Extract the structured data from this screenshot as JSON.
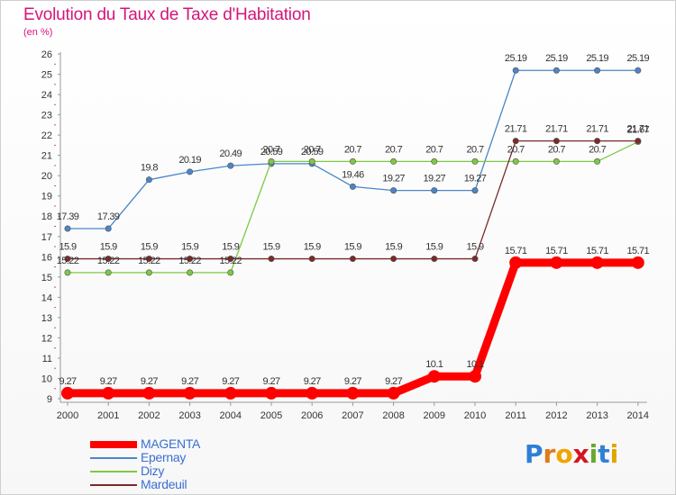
{
  "chart_data": {
    "type": "line",
    "title": "Evolution du Taux de Taxe d'Habitation",
    "unit_label": "(en %)",
    "categories": [
      "2000",
      "2001",
      "2002",
      "2003",
      "2004",
      "2005",
      "2006",
      "2007",
      "2008",
      "2009",
      "2010",
      "2011",
      "2012",
      "2013",
      "2014"
    ],
    "y_ticks": [
      "9",
      "10",
      "11",
      "12",
      "13",
      "14",
      "15",
      "16",
      "17",
      "18",
      "19",
      "20",
      "21",
      "22",
      "23",
      "24",
      "25",
      "26"
    ],
    "ylim": [
      9,
      26
    ],
    "grid": false,
    "legend_position": "bottom-left",
    "series": [
      {
        "name": "Epernay",
        "color": "#4a86c8",
        "values": [
          17.39,
          17.39,
          19.8,
          20.19,
          20.49,
          20.59,
          20.59,
          19.46,
          19.27,
          19.27,
          19.27,
          25.19,
          25.19,
          25.19,
          25.19
        ],
        "labels": [
          "17.39",
          "17.39",
          "19.8",
          "20.19",
          "20.49",
          "20.59",
          "20.59",
          "19.46",
          "19.27",
          "19.27",
          "19.27",
          "25.19",
          "25.19",
          "25.19",
          "25.19"
        ]
      },
      {
        "name": "Dizy",
        "color": "#7cc943",
        "values": [
          15.22,
          15.22,
          15.22,
          15.22,
          15.22,
          20.7,
          20.7,
          20.7,
          20.7,
          20.7,
          20.7,
          20.7,
          20.7,
          20.7,
          21.67
        ],
        "labels": [
          "15.22",
          "15.22",
          "15.22",
          "15.22",
          "15.22",
          "20.7",
          "20.7",
          "20.7",
          "20.7",
          "20.7",
          "20.7",
          "20.7",
          "20.7",
          "20.7",
          "21.67"
        ]
      },
      {
        "name": "Mardeuil",
        "color": "#7a2a2a",
        "values": [
          15.9,
          15.9,
          15.9,
          15.9,
          15.9,
          15.9,
          15.9,
          15.9,
          15.9,
          15.9,
          15.9,
          21.71,
          21.71,
          21.71,
          21.71
        ],
        "labels": [
          "15.9",
          "15.9",
          "15.9",
          "15.9",
          "15.9",
          "15.9",
          "15.9",
          "15.9",
          "15.9",
          "15.9",
          "15.9",
          "21.71",
          "21.71",
          "21.71",
          "21.71"
        ]
      },
      {
        "name": "MAGENTA",
        "color": "#ff0000",
        "values": [
          9.27,
          9.27,
          9.27,
          9.27,
          9.27,
          9.27,
          9.27,
          9.27,
          9.27,
          10.1,
          10.1,
          15.71,
          15.71,
          15.71,
          15.71
        ],
        "labels": [
          "9.27",
          "9.27",
          "9.27",
          "9.27",
          "9.27",
          "9.27",
          "9.27",
          "9.27",
          "9.27",
          "10.1",
          "10.1",
          "15.71",
          "15.71",
          "15.71",
          "15.71"
        ]
      }
    ],
    "legend_order": [
      "MAGENTA",
      "Epernay",
      "Dizy",
      "Mardeuil"
    ]
  },
  "logo": {
    "letters": [
      "P",
      "r",
      "o",
      "x",
      "i",
      "t",
      "i"
    ]
  }
}
